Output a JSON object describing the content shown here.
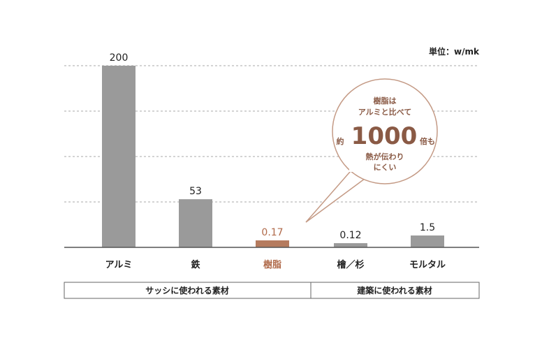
{
  "chart_data": {
    "type": "bar",
    "unit_label": "単位：w/mk",
    "categories": [
      "アルミ",
      "鉄",
      "樹脂",
      "檜／杉",
      "モルタル"
    ],
    "values": [
      200,
      53,
      0.17,
      0.12,
      1.5
    ],
    "value_labels": [
      "200",
      "53",
      "0.17",
      "0.12",
      "1.5"
    ],
    "highlight_index": 2,
    "ylim": [
      0,
      200
    ],
    "grid": true,
    "colors": {
      "bar": "#9a9a9a",
      "highlight": "#b57b5e",
      "grid": "#a8a8a8",
      "accent_text": "#b06a4a",
      "bubble_text": "#8a5a45"
    },
    "groups": [
      {
        "label": "サッシに使われる素材",
        "categories": [
          "アルミ",
          "鉄",
          "樹脂"
        ]
      },
      {
        "label": "建築に使われる素材",
        "categories": [
          "檜／杉",
          "モルタル"
        ]
      }
    ],
    "annotation": {
      "line1": "樹脂は",
      "line2": "アルミと比べて",
      "prefix": "約",
      "big": "1000",
      "suffix": "倍も",
      "line4": "熱が伝わり",
      "line5": "にくい"
    }
  }
}
